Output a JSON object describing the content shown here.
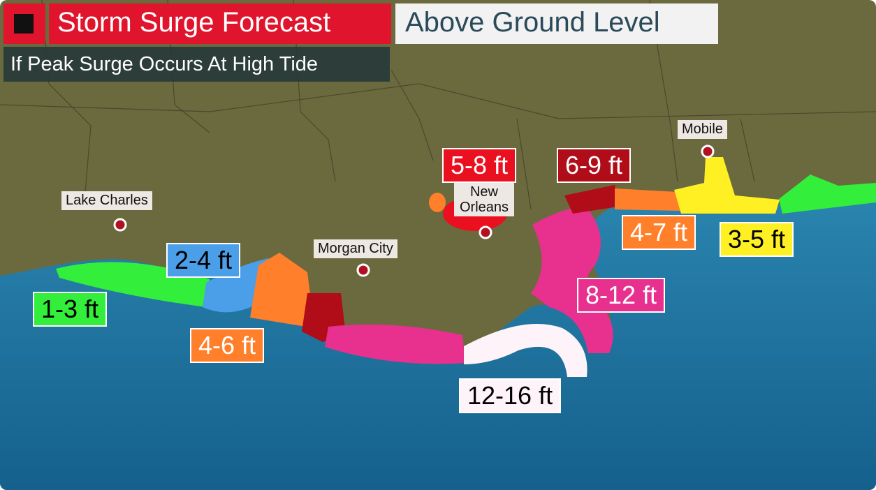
{
  "header": {
    "title": "Storm Surge Forecast",
    "subtitle": "Above Ground Level",
    "note": "If Peak Surge Occurs At High Tide"
  },
  "cities": [
    {
      "label": "Lake Charles"
    },
    {
      "label": "Morgan City"
    },
    {
      "label": "New Orleans"
    },
    {
      "label": "Mobile"
    }
  ],
  "zones": [
    {
      "label": "1-3 ft",
      "color": "#33ee3a"
    },
    {
      "label": "2-4 ft",
      "color": "#4a9fe8"
    },
    {
      "label": "4-6 ft",
      "color": "#ff7f2a"
    },
    {
      "label": "8-12 ft",
      "color": "#e8308f"
    },
    {
      "label": "12-16 ft",
      "color": "#fff3fa"
    },
    {
      "label": "5-8 ft",
      "color": "#ea1020"
    },
    {
      "label": "6-9 ft",
      "color": "#b00d18"
    },
    {
      "label": "4-7 ft",
      "color": "#ff7f2a"
    },
    {
      "label": "3-5 ft",
      "color": "#fff024"
    }
  ]
}
